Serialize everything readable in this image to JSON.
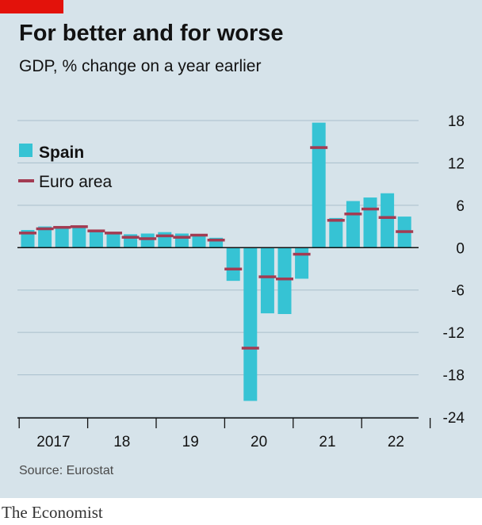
{
  "header": {
    "title": "For better and for worse",
    "subtitle": "GDP, % change on a year earlier"
  },
  "footer": {
    "source": "Source: Eurostat",
    "brand": "The Economist"
  },
  "colors": {
    "spain": "#36c3d4",
    "euro_area": "#a33b52",
    "accent": "#e3120b",
    "background": "#d6e3ea",
    "grid": "#a9bfcc"
  },
  "chart_data": {
    "type": "bar",
    "title": "For better and for worse",
    "subtitle": "GDP, % change on a year earlier",
    "xlabel": "",
    "ylabel": "",
    "ylim": [
      -24,
      18
    ],
    "yticks": [
      18,
      12,
      6,
      0,
      -6,
      -12,
      -18,
      -24
    ],
    "grid": true,
    "legend_position": "top-left",
    "x_tick_labels": [
      "2017",
      "18",
      "19",
      "20",
      "21",
      "22"
    ],
    "categories": [
      "2017 Q1",
      "2017 Q2",
      "2017 Q3",
      "2017 Q4",
      "2018 Q1",
      "2018 Q2",
      "2018 Q3",
      "2018 Q4",
      "2019 Q1",
      "2019 Q2",
      "2019 Q3",
      "2019 Q4",
      "2020 Q1",
      "2020 Q2",
      "2020 Q3",
      "2020 Q4",
      "2021 Q1",
      "2021 Q2",
      "2021 Q3",
      "2021 Q4",
      "2022 Q1",
      "2022 Q2",
      "2022 Q3"
    ],
    "series": [
      {
        "name": "Spain",
        "type": "bar",
        "values": [
          2.5,
          3.0,
          3.0,
          3.0,
          2.3,
          2.0,
          1.9,
          2.0,
          2.2,
          2.0,
          1.8,
          1.4,
          -4.7,
          -21.7,
          -9.3,
          -9.4,
          -4.4,
          17.7,
          4.2,
          6.6,
          7.1,
          7.7,
          4.4
        ]
      },
      {
        "name": "Euro area",
        "type": "marker",
        "values": [
          2.1,
          2.7,
          2.9,
          3.0,
          2.4,
          2.1,
          1.5,
          1.3,
          1.7,
          1.5,
          1.8,
          1.1,
          -3.0,
          -14.2,
          -4.1,
          -4.4,
          -0.9,
          14.2,
          3.9,
          4.8,
          5.5,
          4.3,
          2.3
        ]
      }
    ]
  }
}
